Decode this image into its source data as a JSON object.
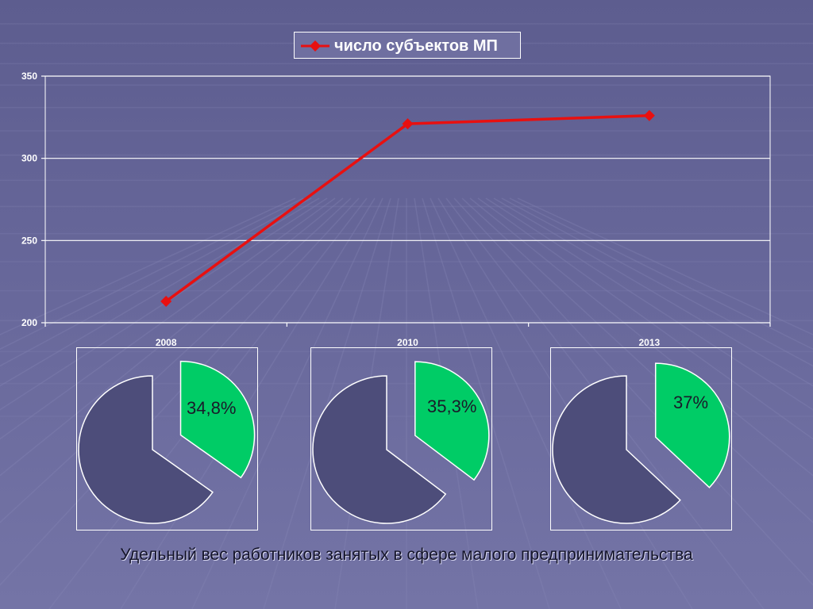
{
  "chart_data": [
    {
      "type": "line",
      "title": "",
      "categories": [
        "2008",
        "2010",
        "2013"
      ],
      "series": [
        {
          "name": "число субъектов МП",
          "values": [
            213,
            321,
            326
          ],
          "color": "#e81010"
        }
      ],
      "ylim": [
        200,
        350
      ],
      "yticks": [
        "200",
        "250",
        "300",
        "350"
      ],
      "xlabel": "",
      "ylabel": "",
      "grid": true,
      "legend": "top-center"
    },
    {
      "type": "pie",
      "title": "2008",
      "slices": [
        {
          "label": "34,8%",
          "value": 34.8,
          "color": "#00cc66"
        },
        {
          "label": "",
          "value": 65.2,
          "color": "#4d4d7a"
        }
      ]
    },
    {
      "type": "pie",
      "title": "2010",
      "slices": [
        {
          "label": "35,3%",
          "value": 35.3,
          "color": "#00cc66"
        },
        {
          "label": "",
          "value": 64.7,
          "color": "#4d4d7a"
        }
      ]
    },
    {
      "type": "pie",
      "title": "2013",
      "slices": [
        {
          "label": "37%",
          "value": 37,
          "color": "#00cc66"
        },
        {
          "label": "",
          "value": 63,
          "color": "#4d4d7a"
        }
      ]
    }
  ],
  "caption": "Удельный вес работников занятых в сфере малого предпринимательства",
  "colors": {
    "line": "#e81010",
    "highlight_slice": "#00cc66",
    "other_slice": "#4d4d7a",
    "axis": "#ffffff"
  }
}
